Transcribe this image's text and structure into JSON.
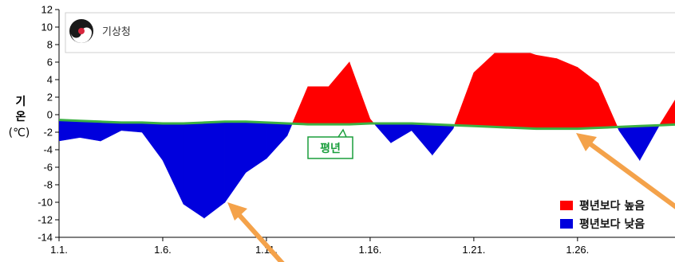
{
  "chart_data": {
    "type": "area",
    "title": "",
    "xlabel": "",
    "ylabel_lines": [
      "기",
      "온",
      "(℃)"
    ],
    "ylim": [
      -14,
      12
    ],
    "yticks": [
      12,
      10,
      8,
      6,
      4,
      2,
      0,
      -2,
      -4,
      -6,
      -8,
      -10,
      -12,
      -14
    ],
    "x_ticks": [
      {
        "day": 1,
        "label": "1.1."
      },
      {
        "day": 6,
        "label": "1.6."
      },
      {
        "day": 11,
        "label": "1.11."
      },
      {
        "day": 16,
        "label": "1.16."
      },
      {
        "day": 21,
        "label": "1.21."
      },
      {
        "day": 26,
        "label": "1.26."
      }
    ],
    "days": [
      1,
      2,
      3,
      4,
      5,
      6,
      7,
      8,
      9,
      10,
      11,
      12,
      13,
      14,
      15,
      16,
      17,
      18,
      19,
      20,
      21,
      22,
      23,
      24,
      25,
      26,
      27,
      28,
      29,
      30,
      31
    ],
    "actual": [
      -3.0,
      -2.6,
      -3.0,
      -1.8,
      -2.0,
      -5.2,
      -10.2,
      -11.8,
      -10.0,
      -6.6,
      -5.0,
      -2.4,
      3.2,
      3.2,
      6.0,
      -0.5,
      -3.2,
      -1.8,
      -4.6,
      -1.6,
      4.8,
      7.0,
      7.6,
      6.8,
      6.4,
      5.4,
      3.6,
      -1.8,
      -5.2,
      -1.0,
      2.8
    ],
    "normal": [
      -0.6,
      -0.7,
      -0.8,
      -0.9,
      -0.9,
      -1.0,
      -1.0,
      -0.9,
      -0.8,
      -0.8,
      -0.9,
      -1.0,
      -1.1,
      -1.1,
      -1.1,
      -1.0,
      -1.0,
      -1.0,
      -1.1,
      -1.2,
      -1.3,
      -1.4,
      -1.5,
      -1.6,
      -1.6,
      -1.6,
      -1.5,
      -1.4,
      -1.3,
      -1.2,
      -1.1
    ],
    "colors": {
      "above": "#ff0000",
      "below": "#0000dd",
      "normal_line": "#3cb043",
      "arrow": "#f4a24a"
    },
    "normal_callout": "평년",
    "legend": [
      {
        "label": "평년보다 높음",
        "color": "#ff0000"
      },
      {
        "label": "평년보다 낮음",
        "color": "#0000dd"
      }
    ],
    "legend_position": "bottom-right"
  },
  "logo": {
    "text": "기상청"
  }
}
